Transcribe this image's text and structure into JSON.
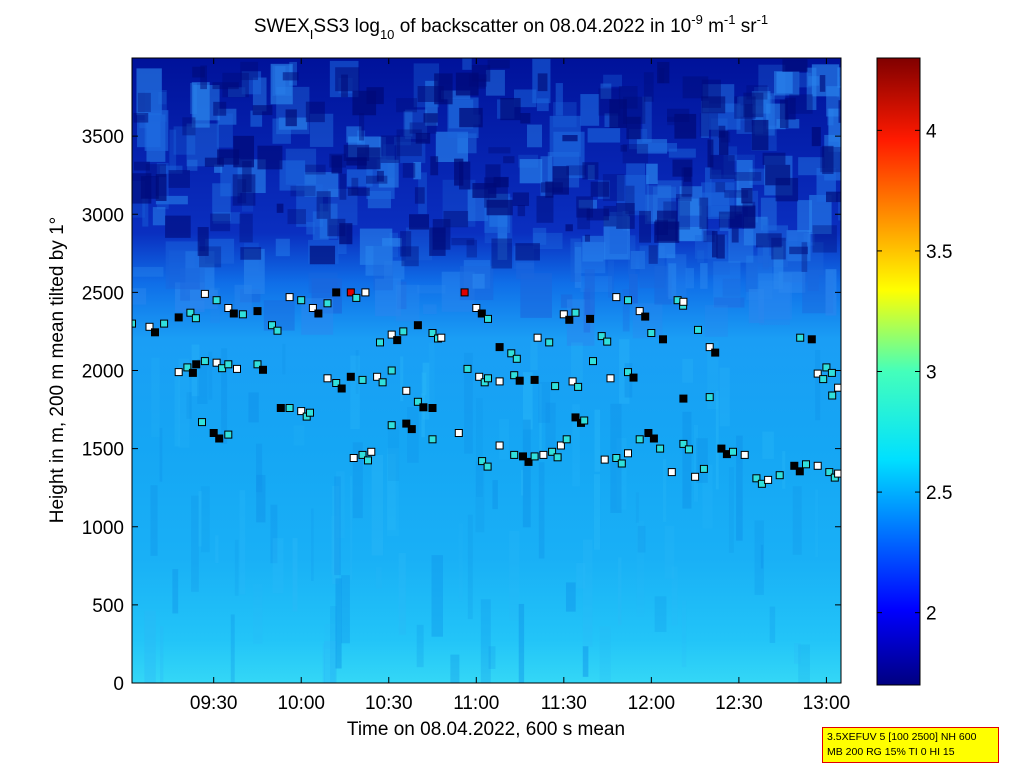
{
  "chart_data": {
    "type": "heatmap",
    "title": {
      "prefix": "SWEX",
      "prefix_sub": "I",
      "mid": "SS3 log",
      "mid_sub": "10",
      "rest": " of backscatter on 08.04.2022 in 10",
      "unit_exp1": "-9",
      "unit_mid": " m",
      "unit_exp2": "-1",
      "unit_end": " sr",
      "unit_exp3": "-1"
    },
    "xlabel": "Time on 08.04.2022, 600 s mean",
    "ylabel": "Height in m, 200 m mean tilted by 1°",
    "x_range_minutes": [
      542,
      785
    ],
    "ylim": [
      0,
      4000
    ],
    "x_ticks": [
      {
        "label": "09:30",
        "minutes": 570
      },
      {
        "label": "10:00",
        "minutes": 600
      },
      {
        "label": "10:30",
        "minutes": 630
      },
      {
        "label": "11:00",
        "minutes": 660
      },
      {
        "label": "11:30",
        "minutes": 690
      },
      {
        "label": "12:00",
        "minutes": 720
      },
      {
        "label": "12:30",
        "minutes": 750
      },
      {
        "label": "13:00",
        "minutes": 780
      }
    ],
    "y_ticks": [
      0,
      500,
      1000,
      1500,
      2000,
      2500,
      3000,
      3500
    ],
    "colorbar": {
      "range": [
        1.7,
        4.3
      ],
      "ticks": [
        "2",
        "2.5",
        "3",
        "3.5",
        "4"
      ],
      "tick_values": [
        2,
        2.5,
        3,
        3.5,
        4
      ]
    },
    "cloud_base_layers": [
      {
        "name": "upper",
        "points": [
          [
            542,
            2300
          ],
          [
            548,
            2280
          ],
          [
            553,
            2300
          ],
          [
            558,
            2340
          ],
          [
            562,
            2370
          ],
          [
            567,
            2490
          ],
          [
            571,
            2450
          ],
          [
            575,
            2400
          ],
          [
            580,
            2360
          ],
          [
            585,
            2380
          ],
          [
            590,
            2290
          ],
          [
            596,
            2470
          ],
          [
            600,
            2450
          ],
          [
            604,
            2400
          ],
          [
            609,
            2430
          ],
          [
            612,
            2500
          ],
          [
            617,
            2500
          ],
          [
            622,
            2500
          ],
          [
            627,
            2180
          ],
          [
            631,
            2230
          ],
          [
            635,
            2250
          ],
          [
            640,
            2290
          ],
          [
            645,
            2240
          ],
          [
            648,
            2210
          ],
          [
            656,
            2500
          ],
          [
            660,
            2400
          ],
          [
            664,
            2330
          ],
          [
            668,
            2150
          ],
          [
            672,
            2110
          ],
          [
            681,
            2210
          ],
          [
            685,
            2180
          ],
          [
            690,
            2360
          ],
          [
            694,
            2370
          ],
          [
            699,
            2330
          ],
          [
            703,
            2220
          ],
          [
            708,
            2470
          ],
          [
            712,
            2450
          ],
          [
            716,
            2380
          ],
          [
            720,
            2240
          ],
          [
            724,
            2200
          ],
          [
            729,
            2450
          ],
          [
            731,
            2440
          ],
          [
            736,
            2260
          ],
          [
            740,
            2150
          ],
          [
            771,
            2210
          ],
          [
            775,
            2200
          ],
          [
            780,
            2020
          ],
          [
            784,
            1890
          ]
        ]
      },
      {
        "name": "middle",
        "points": [
          [
            558,
            1990
          ],
          [
            561,
            2020
          ],
          [
            564,
            2040
          ],
          [
            567,
            2060
          ],
          [
            571,
            2050
          ],
          [
            575,
            2040
          ],
          [
            578,
            2010
          ],
          [
            585,
            2040
          ],
          [
            593,
            1760
          ],
          [
            596,
            1760
          ],
          [
            600,
            1740
          ],
          [
            603,
            1730
          ],
          [
            609,
            1950
          ],
          [
            612,
            1920
          ],
          [
            617,
            1960
          ],
          [
            621,
            1940
          ],
          [
            626,
            1960
          ],
          [
            631,
            2000
          ],
          [
            636,
            1870
          ],
          [
            640,
            1800
          ],
          [
            645,
            1760
          ],
          [
            657,
            2010
          ],
          [
            661,
            1960
          ],
          [
            664,
            1950
          ],
          [
            668,
            1930
          ],
          [
            673,
            1970
          ],
          [
            680,
            1940
          ],
          [
            687,
            1900
          ],
          [
            693,
            1930
          ],
          [
            700,
            2060
          ],
          [
            706,
            1950
          ],
          [
            712,
            1990
          ],
          [
            731,
            1820
          ],
          [
            740,
            1830
          ],
          [
            777,
            1980
          ],
          [
            782,
            1840
          ]
        ]
      },
      {
        "name": "lower",
        "points": [
          [
            566,
            1670
          ],
          [
            570,
            1600
          ],
          [
            575,
            1590
          ],
          [
            618,
            1440
          ],
          [
            621,
            1460
          ],
          [
            624,
            1480
          ],
          [
            631,
            1650
          ],
          [
            636,
            1660
          ],
          [
            645,
            1560
          ],
          [
            654,
            1600
          ],
          [
            662,
            1420
          ],
          [
            668,
            1520
          ],
          [
            673,
            1460
          ],
          [
            676,
            1450
          ],
          [
            680,
            1450
          ],
          [
            683,
            1460
          ],
          [
            686,
            1480
          ],
          [
            689,
            1520
          ],
          [
            691,
            1560
          ],
          [
            694,
            1700
          ],
          [
            697,
            1680
          ],
          [
            704,
            1430
          ],
          [
            708,
            1440
          ],
          [
            712,
            1470
          ],
          [
            716,
            1560
          ],
          [
            719,
            1600
          ],
          [
            723,
            1500
          ],
          [
            727,
            1350
          ],
          [
            731,
            1530
          ],
          [
            735,
            1320
          ],
          [
            738,
            1370
          ],
          [
            744,
            1500
          ],
          [
            748,
            1480
          ],
          [
            752,
            1460
          ],
          [
            756,
            1310
          ],
          [
            760,
            1300
          ],
          [
            764,
            1330
          ],
          [
            769,
            1390
          ],
          [
            773,
            1400
          ],
          [
            777,
            1390
          ],
          [
            781,
            1350
          ],
          [
            784,
            1340
          ]
        ]
      }
    ]
  },
  "info_box": {
    "line1": "3.5XEFUV 5 [100 2500] NH 600",
    "line2": "MB 200 RG 15% TI 0 HI 15"
  }
}
